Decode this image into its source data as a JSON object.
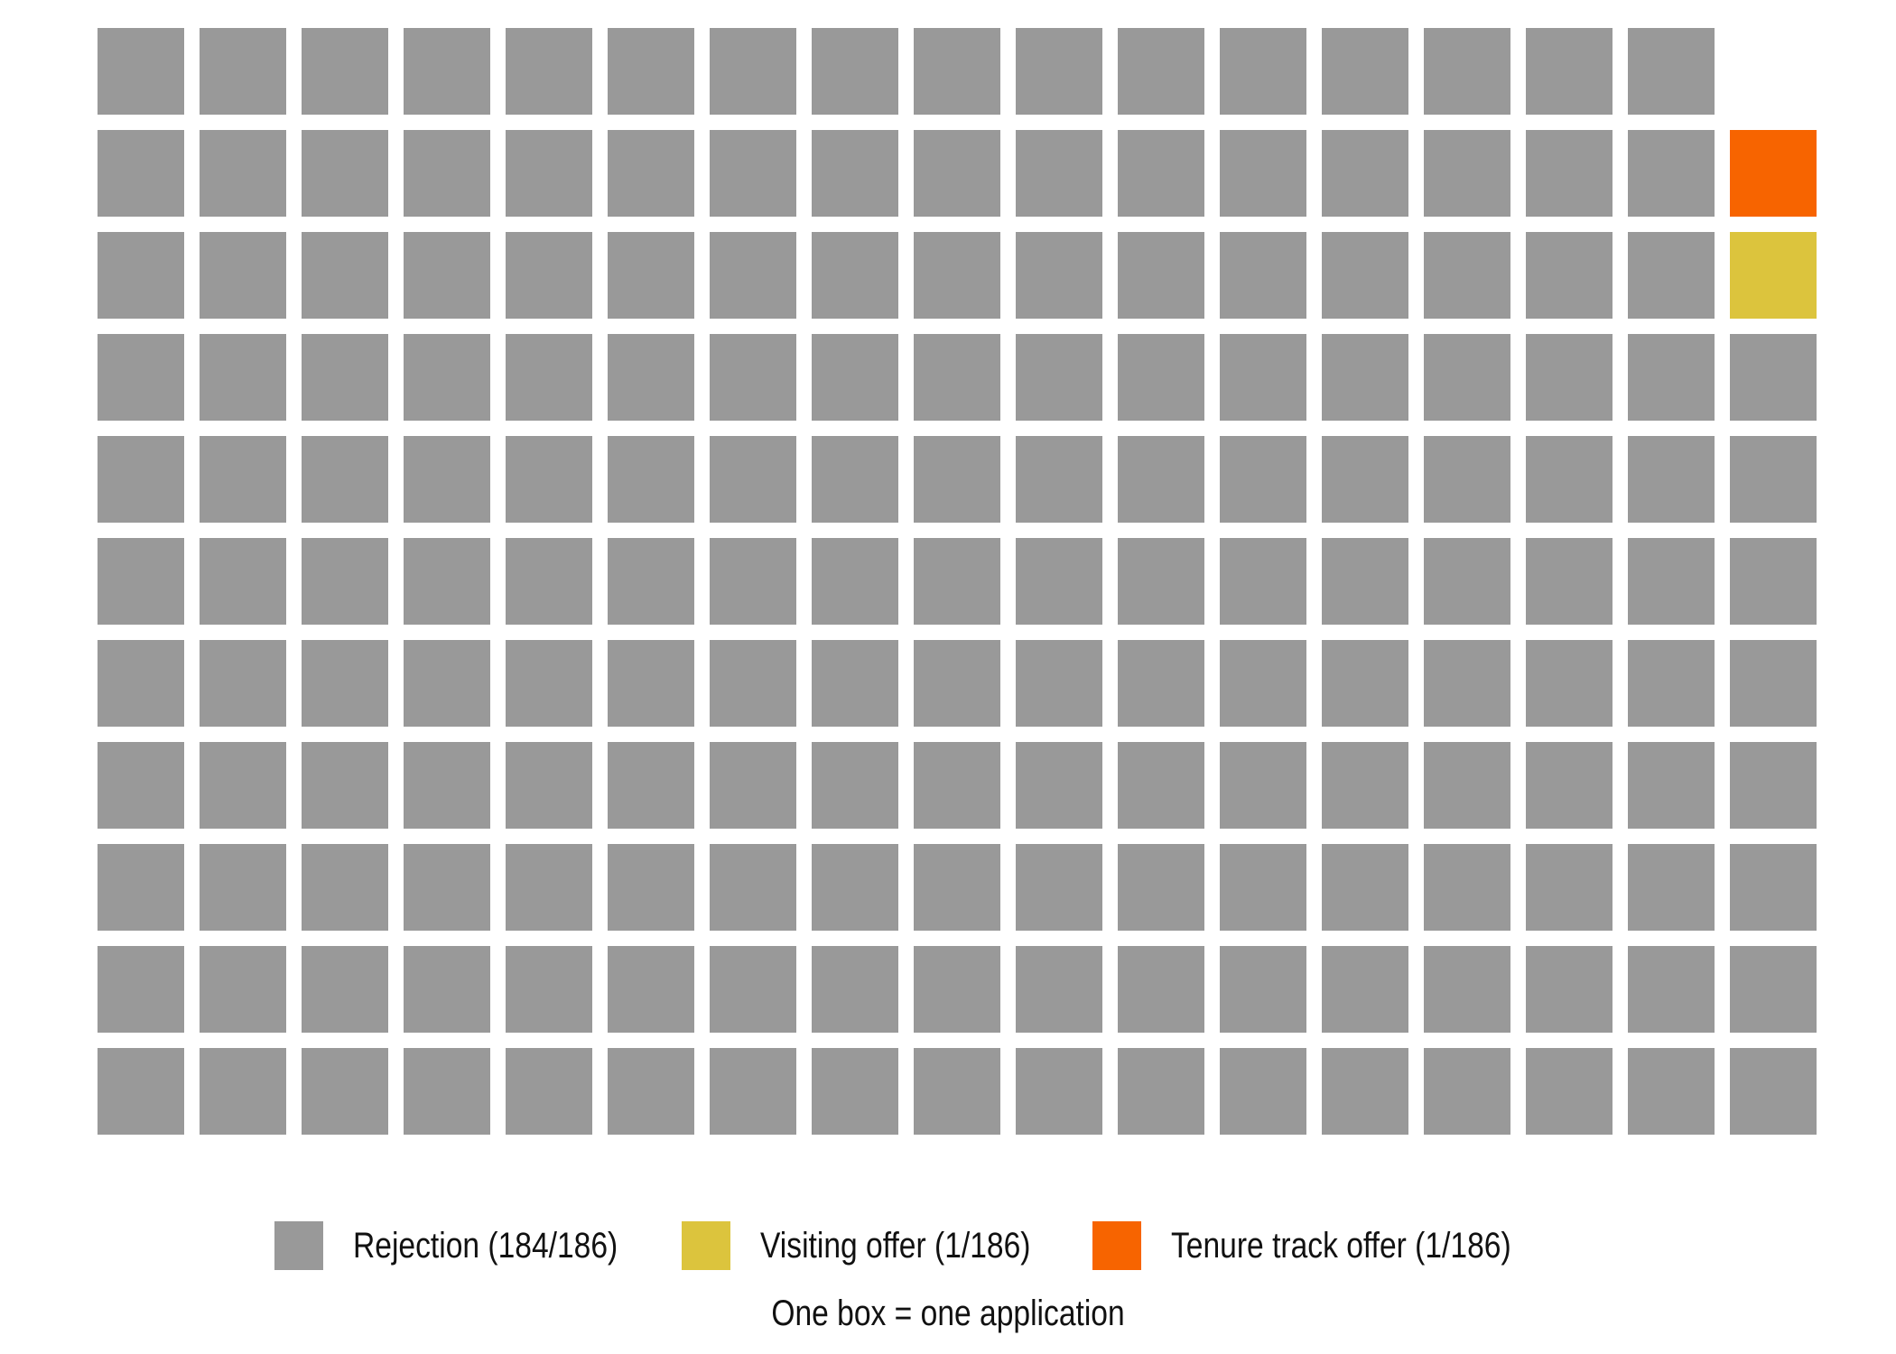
{
  "chart_data": {
    "type": "waffle",
    "rows": 11,
    "columns": 17,
    "total": 186,
    "series": [
      {
        "name": "Rejection (184/186)",
        "value": 184,
        "color": "#999999"
      },
      {
        "name": "Visiting offer (1/186)",
        "value": 1,
        "color": "#dcc43d"
      },
      {
        "name": "Tenure track offer (1/186)",
        "value": 1,
        "color": "#f76400"
      }
    ],
    "caption": "One box = one application",
    "legend_position": "bottom"
  }
}
